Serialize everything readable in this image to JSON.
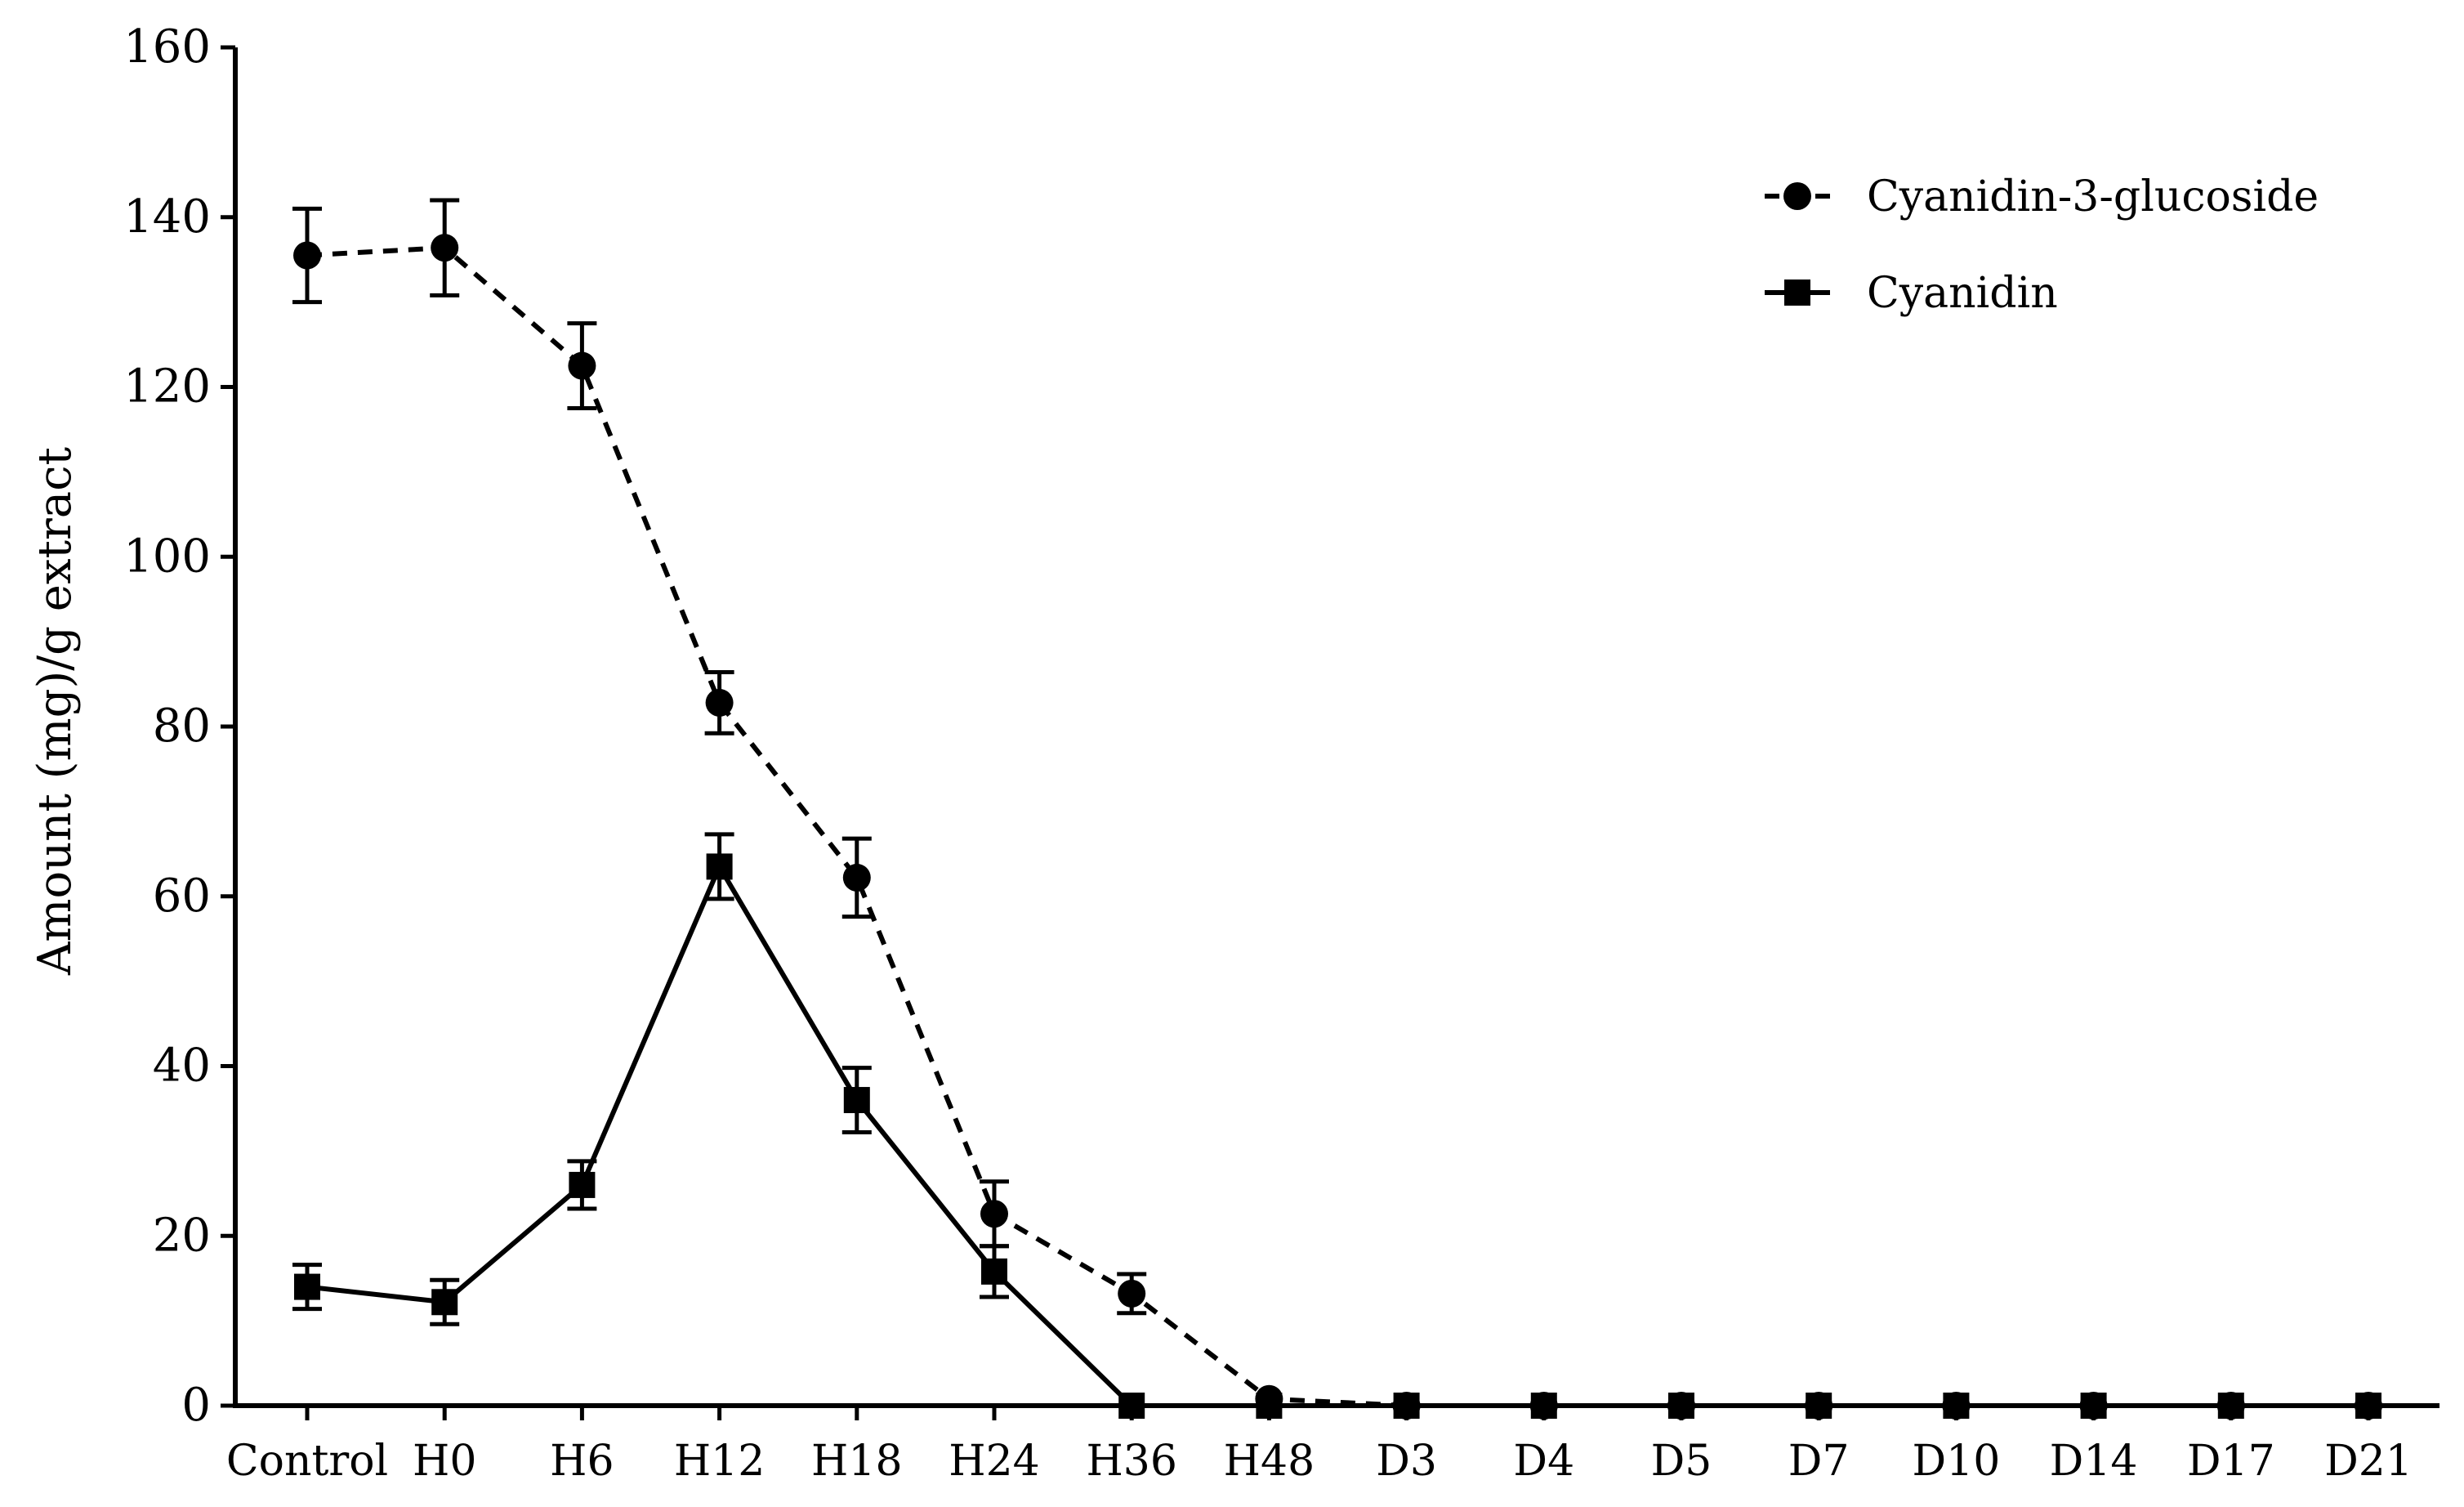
{
  "chart_data": {
    "type": "line",
    "title": "",
    "xlabel": "",
    "ylabel": "Amount (mg)/g extract",
    "ylim": [
      0,
      160
    ],
    "yticks": [
      0,
      20,
      40,
      60,
      80,
      100,
      120,
      140,
      160
    ],
    "categories": [
      "Control",
      "H0",
      "H6",
      "H12",
      "H18",
      "H24",
      "H36",
      "H48",
      "D3",
      "D4",
      "D5",
      "D7",
      "D10",
      "D14",
      "D17",
      "D21"
    ],
    "legend_position": "top-right",
    "grid": false,
    "series": [
      {
        "name": "Cyanidin-3-glucoside",
        "marker": "circle",
        "line_style": "dashed",
        "color": "#000000",
        "values": [
          135.5,
          136.4,
          122.5,
          82.8,
          62.2,
          22.6,
          13.2,
          0.8,
          0,
          0,
          0,
          0,
          0,
          0,
          0,
          0
        ],
        "errors": [
          5.5,
          5.6,
          5.0,
          3.6,
          4.6,
          3.8,
          2.3,
          0,
          0,
          0,
          0,
          0,
          0,
          0,
          0,
          0
        ]
      },
      {
        "name": "Cyanidin",
        "marker": "square",
        "line_style": "solid",
        "color": "#000000",
        "values": [
          14.0,
          12.2,
          26.0,
          63.5,
          36.0,
          15.8,
          0,
          0,
          0,
          0,
          0,
          0,
          0,
          0,
          0,
          0
        ],
        "errors": [
          2.6,
          2.6,
          2.8,
          3.8,
          3.8,
          3.0,
          0,
          0,
          0,
          0,
          0,
          0,
          0,
          0,
          0,
          0
        ]
      }
    ]
  }
}
